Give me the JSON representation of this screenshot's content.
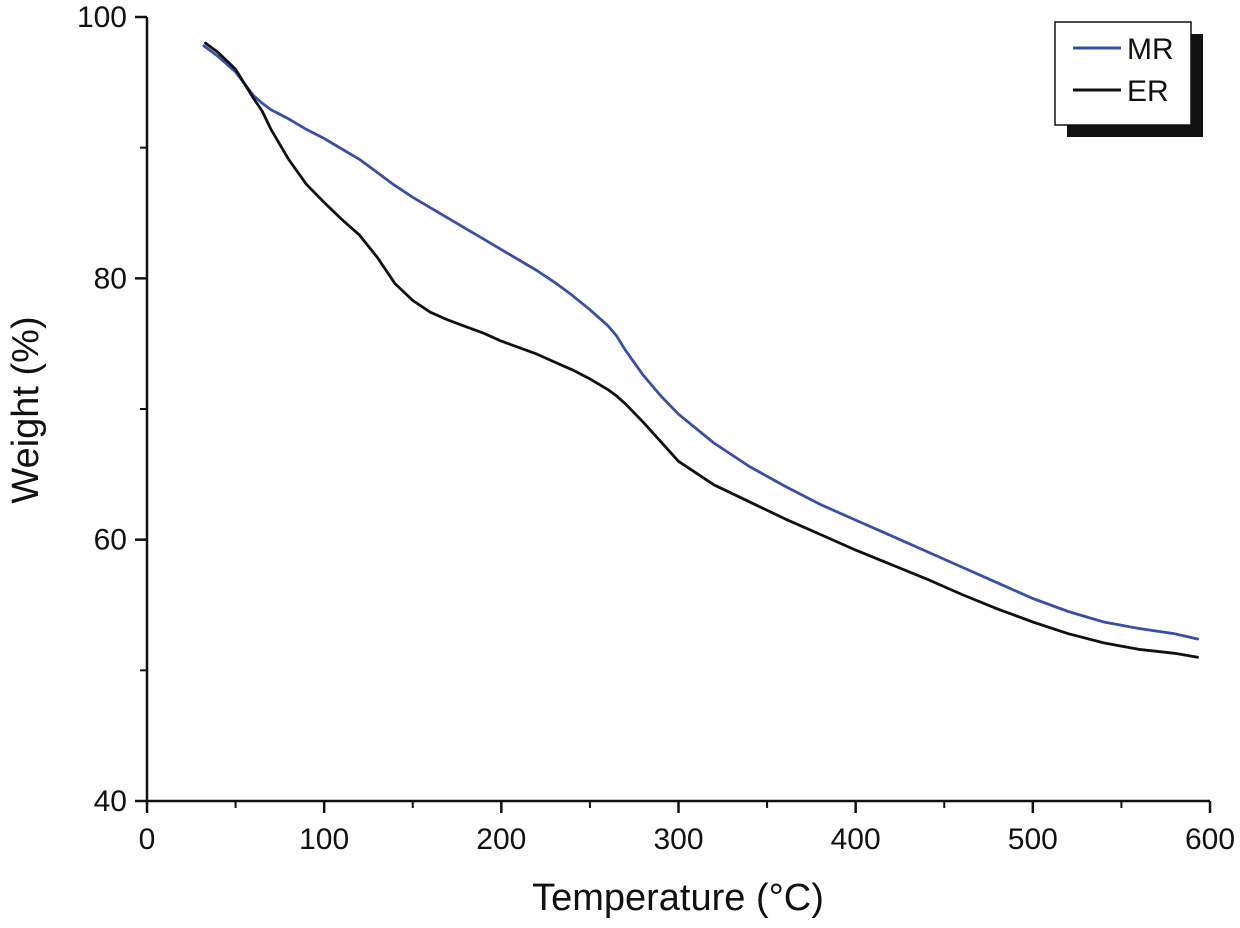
{
  "chart_data": {
    "type": "line",
    "title": "",
    "xlabel": "Temperature (°C)",
    "ylabel": "Weight (%)",
    "xlim": [
      0,
      600
    ],
    "ylim": [
      40,
      100
    ],
    "x_major_ticks": [
      0,
      100,
      200,
      300,
      400,
      500,
      600
    ],
    "x_tick_labels": [
      "0",
      "100",
      "200",
      "300",
      "400",
      "500",
      "600"
    ],
    "x_minor_ticks": [
      50,
      150,
      250,
      350,
      450,
      550
    ],
    "y_major_ticks": [
      40,
      60,
      80,
      100
    ],
    "y_tick_labels": [
      "40",
      "60",
      "80",
      "100"
    ],
    "y_minor_ticks": [
      50,
      70,
      90
    ],
    "grid": false,
    "legend_position": "top-right",
    "series": [
      {
        "name": "MR",
        "color": "#3a4fa8",
        "points": [
          [
            32,
            97.8
          ],
          [
            40,
            97
          ],
          [
            50,
            95.8
          ],
          [
            60,
            94
          ],
          [
            65,
            93.4
          ],
          [
            70,
            92.9
          ],
          [
            80,
            92.2
          ],
          [
            90,
            91.4
          ],
          [
            100,
            90.7
          ],
          [
            110,
            89.9
          ],
          [
            120,
            89.1
          ],
          [
            130,
            88.1
          ],
          [
            140,
            87.1
          ],
          [
            150,
            86.2
          ],
          [
            160,
            85.4
          ],
          [
            170,
            84.6
          ],
          [
            180,
            83.8
          ],
          [
            190,
            83
          ],
          [
            200,
            82.2
          ],
          [
            210,
            81.4
          ],
          [
            220,
            80.6
          ],
          [
            230,
            79.7
          ],
          [
            240,
            78.7
          ],
          [
            250,
            77.6
          ],
          [
            260,
            76.4
          ],
          [
            265,
            75.6
          ],
          [
            270,
            74.5
          ],
          [
            280,
            72.6
          ],
          [
            290,
            71
          ],
          [
            300,
            69.6
          ],
          [
            320,
            67.4
          ],
          [
            340,
            65.6
          ],
          [
            360,
            64.1
          ],
          [
            380,
            62.7
          ],
          [
            400,
            61.5
          ],
          [
            420,
            60.3
          ],
          [
            440,
            59.1
          ],
          [
            460,
            57.9
          ],
          [
            480,
            56.7
          ],
          [
            500,
            55.5
          ],
          [
            520,
            54.5
          ],
          [
            540,
            53.7
          ],
          [
            560,
            53.2
          ],
          [
            580,
            52.8
          ],
          [
            593,
            52.4
          ]
        ]
      },
      {
        "name": "ER",
        "color": "#111111",
        "points": [
          [
            33,
            98
          ],
          [
            40,
            97.3
          ],
          [
            50,
            96
          ],
          [
            60,
            93.8
          ],
          [
            65,
            92.8
          ],
          [
            70,
            91.4
          ],
          [
            80,
            89.1
          ],
          [
            90,
            87.2
          ],
          [
            100,
            85.8
          ],
          [
            110,
            84.5
          ],
          [
            120,
            83.3
          ],
          [
            130,
            81.6
          ],
          [
            140,
            79.6
          ],
          [
            150,
            78.3
          ],
          [
            160,
            77.4
          ],
          [
            170,
            76.8
          ],
          [
            180,
            76.3
          ],
          [
            190,
            75.8
          ],
          [
            200,
            75.2
          ],
          [
            210,
            74.7
          ],
          [
            220,
            74.2
          ],
          [
            230,
            73.6
          ],
          [
            240,
            73
          ],
          [
            250,
            72.3
          ],
          [
            260,
            71.5
          ],
          [
            265,
            71
          ],
          [
            270,
            70.4
          ],
          [
            280,
            69
          ],
          [
            290,
            67.5
          ],
          [
            300,
            66
          ],
          [
            320,
            64.2
          ],
          [
            340,
            62.9
          ],
          [
            360,
            61.6
          ],
          [
            380,
            60.4
          ],
          [
            400,
            59.2
          ],
          [
            420,
            58.1
          ],
          [
            440,
            57
          ],
          [
            460,
            55.8
          ],
          [
            480,
            54.7
          ],
          [
            500,
            53.7
          ],
          [
            520,
            52.8
          ],
          [
            540,
            52.1
          ],
          [
            560,
            51.6
          ],
          [
            580,
            51.3
          ],
          [
            593,
            51
          ]
        ]
      }
    ]
  }
}
